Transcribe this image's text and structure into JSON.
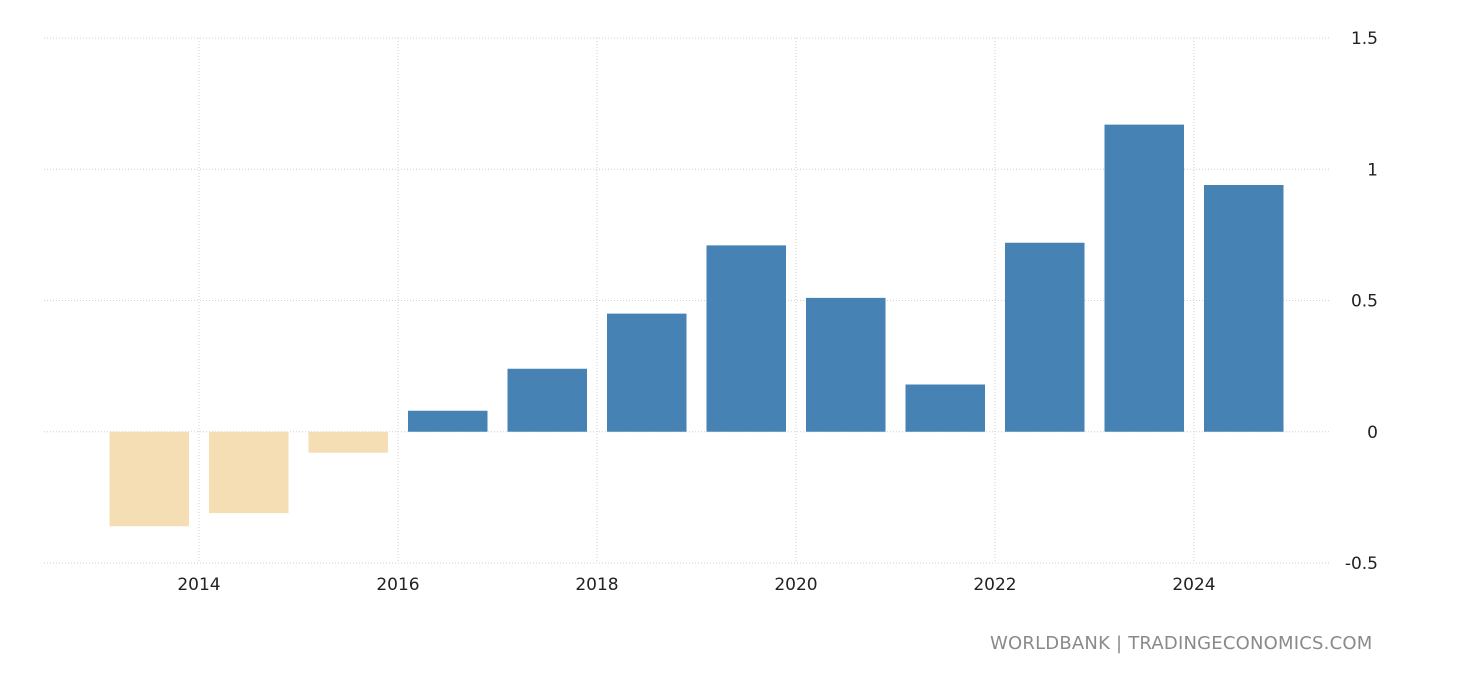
{
  "chart_data": {
    "type": "bar",
    "title": "",
    "xlabel": "",
    "ylabel": "",
    "x": [
      2013,
      2014,
      2015,
      2016,
      2017,
      2018,
      2019,
      2020,
      2021,
      2022,
      2023,
      2024
    ],
    "values": [
      -0.36,
      -0.31,
      -0.08,
      0.08,
      0.24,
      0.45,
      0.71,
      0.51,
      0.18,
      0.72,
      1.17,
      0.94
    ],
    "ylim": [
      -0.5,
      1.5
    ],
    "y_ticks": [
      -0.5,
      0,
      0.5,
      1,
      1.5
    ],
    "y_tick_labels": [
      "-0.5",
      "0",
      "0.5",
      "1",
      "1.5"
    ],
    "x_ticks": [
      2014,
      2016,
      2018,
      2020,
      2022,
      2024
    ],
    "x_tick_labels": [
      "2014",
      "2016",
      "2018",
      "2020",
      "2022",
      "2024"
    ],
    "y_axis_position": "right",
    "grid": true,
    "legend": "none",
    "colors": {
      "positive": "#4682b4",
      "negative": "#f5deb3",
      "grid": "#d0d0d0"
    }
  },
  "source": "WORLDBANK | TRADINGECONOMICS.COM"
}
